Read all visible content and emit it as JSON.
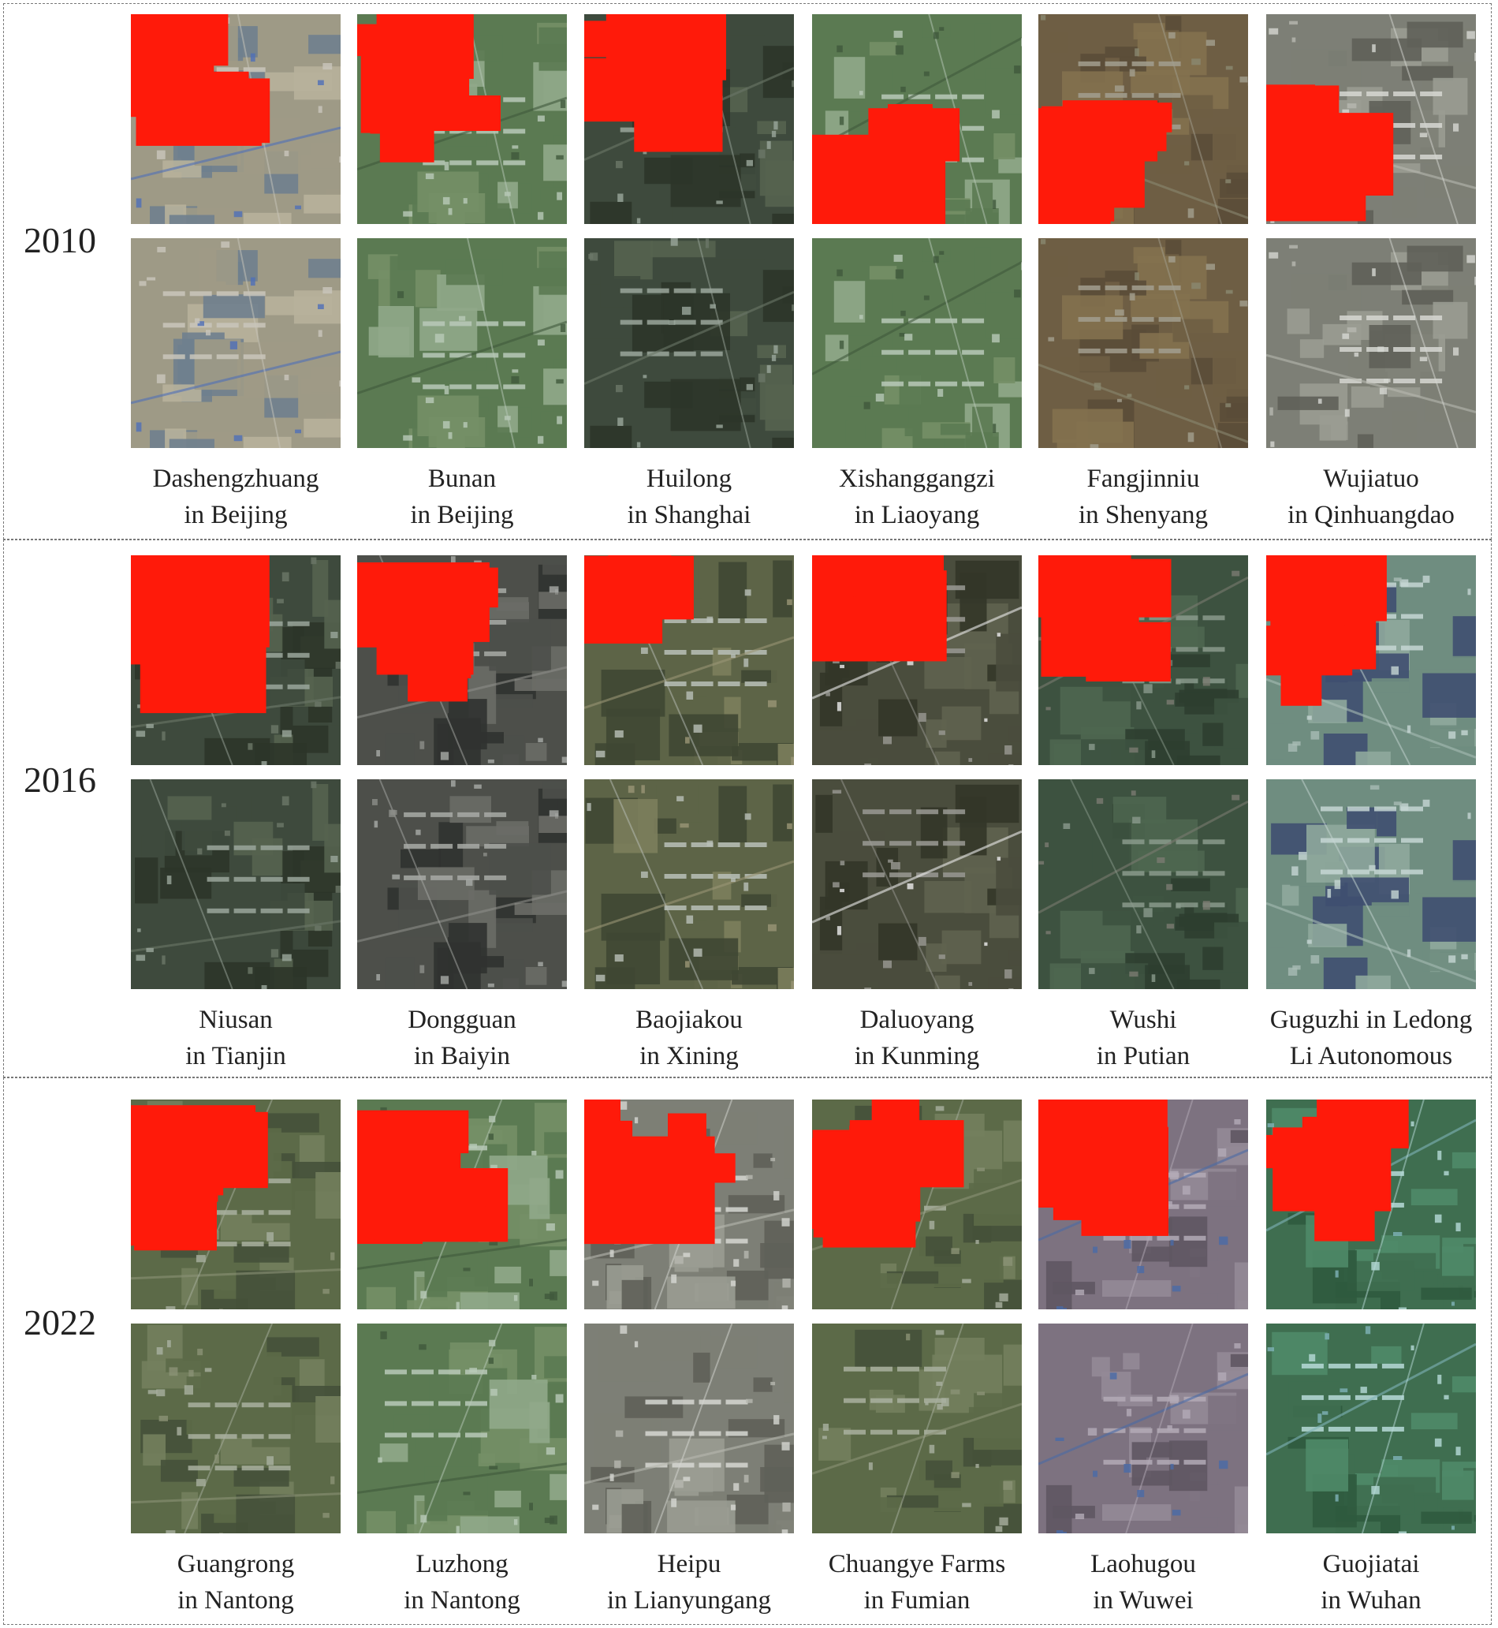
{
  "colors": {
    "mask": "#ff1a0a",
    "border": "#777777"
  },
  "sections": [
    {
      "year": "2010",
      "sites": [
        {
          "line1": "Dashengzhuang",
          "line2": "in Beijing",
          "palette": "urban-tan"
        },
        {
          "line1": "Bunan",
          "line2": "in Beijing",
          "palette": "green-field"
        },
        {
          "line1": "Huilong",
          "line2": "in Shanghai",
          "palette": "dark-field"
        },
        {
          "line1": "Xishanggangzi",
          "line2": "in Liaoyang",
          "palette": "green-field"
        },
        {
          "line1": "Fangjinniu",
          "line2": "in Shenyang",
          "palette": "brown-field"
        },
        {
          "line1": "Wujiatuo",
          "line2": "in Qinhuangdao",
          "palette": "grey-field"
        }
      ]
    },
    {
      "year": "2016",
      "sites": [
        {
          "line1": "Niusan",
          "line2": "in Tianjin",
          "palette": "dark-field"
        },
        {
          "line1": "Dongguan",
          "line2": "in Baiyin",
          "palette": "grey-dark"
        },
        {
          "line1": "Baojiakou",
          "line2": "in Xining",
          "palette": "mountain"
        },
        {
          "line1": "Daluoyang",
          "line2": "in Kunming",
          "palette": "dark-cloud"
        },
        {
          "line1": "Wushi",
          "line2": "in Putian",
          "palette": "forest"
        },
        {
          "line1": "Guguzhi in Ledong",
          "line2": "Li Autonomous",
          "palette": "blue-field"
        }
      ]
    },
    {
      "year": "2022",
      "sites": [
        {
          "line1": "Guangrong",
          "line2": "in Nantong",
          "palette": "olive-field"
        },
        {
          "line1": "Luzhong",
          "line2": "in Nantong",
          "palette": "green-field"
        },
        {
          "line1": "Heipu",
          "line2": "in Lianyungang",
          "palette": "grey-field"
        },
        {
          "line1": "Chuangye Farms",
          "line2": "in Fumian",
          "palette": "olive-field"
        },
        {
          "line1": "Laohugou",
          "line2": "in Wuwei",
          "palette": "purple-grey"
        },
        {
          "line1": "Guojiatai",
          "line2": "in Wuhan",
          "palette": "teal-field"
        }
      ]
    }
  ]
}
